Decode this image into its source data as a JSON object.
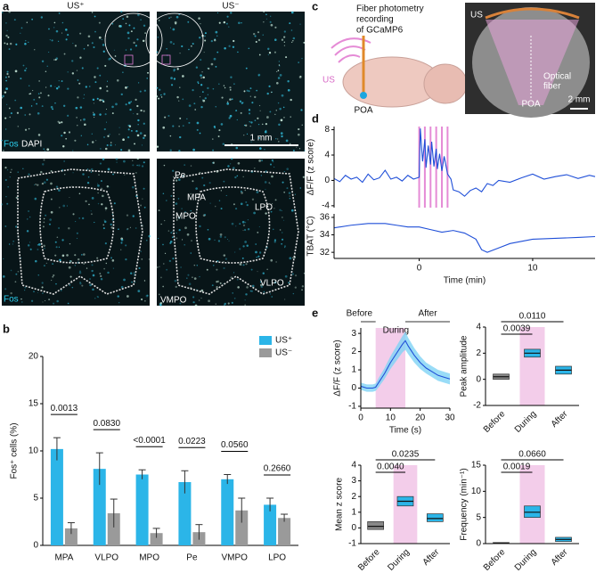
{
  "figure": {
    "a": {
      "label": "a",
      "top_labels": [
        "US⁺",
        "US⁻"
      ],
      "stain_top": [
        "Fos",
        "DAPI"
      ],
      "scale_bar": "1 mm",
      "regions": [
        "Pe",
        "MPA",
        "MPO",
        "LPO",
        "VLPO",
        "VMPO"
      ],
      "stain_bottom": "Fos"
    },
    "b": {
      "label": "b"
    },
    "c": {
      "label": "c",
      "title": [
        "Fiber photometry",
        "recording",
        "of GCaMP6"
      ],
      "cartoon_labels": [
        "US",
        "POA"
      ],
      "image_labels": [
        "US",
        "Optical",
        "fiber",
        "POA"
      ],
      "scale_bar": "2 mm"
    },
    "d": {
      "label": "d"
    },
    "e": {
      "label": "e"
    }
  },
  "chart_data": [
    {
      "type": "bar",
      "ylabel": "Fos⁺ cells (%)",
      "categories": [
        "MPA",
        "VLPO",
        "MPO",
        "Pe",
        "VMPO",
        "LPO"
      ],
      "series": [
        {
          "name": "US⁺",
          "color": "#2bb5e8",
          "values": [
            10.2,
            8.1,
            7.5,
            6.7,
            7.0,
            4.3
          ],
          "errors": [
            1.2,
            1.7,
            0.5,
            1.2,
            0.5,
            0.7
          ]
        },
        {
          "name": "US⁻",
          "color": "#9a9a9a",
          "values": [
            1.8,
            3.4,
            1.3,
            1.4,
            3.7,
            2.9
          ],
          "errors": [
            0.6,
            1.5,
            0.5,
            0.8,
            1.3,
            0.4
          ]
        }
      ],
      "annotations": [
        "0.0013",
        "0.0830",
        "<0.0001",
        "0.0223",
        "0.0560",
        "0.2660"
      ],
      "ylim": [
        0,
        20
      ],
      "yticks": [
        0,
        5,
        10,
        15,
        20
      ]
    },
    {
      "type": "line",
      "ylabel": "ΔF/F (z score)",
      "color": "#1f4fd8",
      "stim_color": "#e58bd6",
      "stim_x": [
        0,
        0.5,
        1,
        1.5,
        2,
        2.5
      ],
      "x": [
        -7.5,
        -7,
        -6.5,
        -6,
        -5.5,
        -5,
        -4.5,
        -4,
        -3.5,
        -3,
        -2.5,
        -2,
        -1.5,
        -1,
        -0.5,
        0,
        0.1,
        0.3,
        0.5,
        0.6,
        0.8,
        1,
        1.1,
        1.3,
        1.5,
        1.6,
        1.8,
        2,
        2.2,
        2.5,
        2.8,
        3,
        3.5,
        4,
        4.5,
        5,
        5.5,
        6,
        6.5,
        7,
        8,
        9,
        10,
        11,
        12,
        13,
        14,
        15,
        15.5
      ],
      "values": [
        0.3,
        -0.2,
        0.8,
        0.2,
        0.5,
        -0.3,
        1,
        0.1,
        0.4,
        1.6,
        0.2,
        0.5,
        -0.1,
        0.8,
        0.2,
        0.5,
        8.2,
        3,
        6.5,
        2,
        5.5,
        2.5,
        6.1,
        2.2,
        5,
        1.8,
        4.2,
        1.5,
        3.8,
        1,
        0.2,
        -1.5,
        -1.8,
        -2.5,
        -1.6,
        -1.2,
        -1.8,
        -0.5,
        -0.8,
        0,
        -0.3,
        0.4,
        1,
        0.2,
        0.6,
        0.9,
        0.3,
        0.8,
        0.6
      ],
      "xlim": [
        -7.5,
        15.5
      ],
      "ylim": [
        -4.3,
        8.5
      ],
      "yticks": [
        -4,
        0,
        4,
        8
      ]
    },
    {
      "type": "line",
      "ylabel": "TBAT (°C)",
      "xlabel": "Time (min)",
      "color": "#1f4fd8",
      "x": [
        -7.5,
        -6,
        -4.5,
        -3,
        -2,
        -1,
        0,
        1,
        2,
        3,
        4,
        5,
        5.5,
        6,
        7,
        8,
        10,
        12,
        14,
        15.5
      ],
      "values": [
        34.8,
        35.1,
        35.3,
        35.3,
        35.1,
        34.9,
        34.9,
        34.6,
        34.3,
        34.5,
        34.2,
        33.5,
        32.3,
        32,
        32.5,
        33,
        33.5,
        33.6,
        33.7,
        33.8
      ],
      "xlim": [
        -7.5,
        15.5
      ],
      "ylim": [
        31.3,
        36.4
      ],
      "yticks": [
        32,
        34,
        36
      ],
      "xticks": [
        0,
        10
      ]
    },
    {
      "type": "line",
      "ylabel": "ΔF/F (z score)",
      "xlabel": "Time (s)",
      "color": "#1f4fd8",
      "band_color": "#7fd3f5",
      "during_color": "#f3cdea",
      "phases": [
        "Before",
        "During",
        "After"
      ],
      "during_x": [
        5,
        15
      ],
      "x": [
        0,
        2,
        4,
        5,
        6,
        8,
        10,
        12,
        14,
        15,
        16,
        18,
        20,
        22,
        24,
        26,
        28,
        30
      ],
      "values": [
        0.1,
        0,
        0,
        0.05,
        0.3,
        0.8,
        1.4,
        1.9,
        2.4,
        2.6,
        2.3,
        1.8,
        1.4,
        1.1,
        0.9,
        0.7,
        0.6,
        0.5
      ],
      "errors": [
        0.2,
        0.2,
        0.2,
        0.2,
        0.25,
        0.3,
        0.35,
        0.4,
        0.45,
        0.5,
        0.45,
        0.4,
        0.35,
        0.3,
        0.3,
        0.3,
        0.3,
        0.3
      ],
      "xlim": [
        0,
        30
      ],
      "ylim": [
        -1.1,
        3.3
      ],
      "xticks": [
        0,
        10,
        20,
        30
      ],
      "yticks": [
        -1,
        0,
        1,
        2,
        3
      ]
    },
    {
      "type": "box",
      "ylabel": "Peak amplitude",
      "categories": [
        "Before",
        "During",
        "After"
      ],
      "colors": [
        "#888888",
        "#2bb5e8",
        "#2bb5e8"
      ],
      "boxes": [
        {
          "q1": 0,
          "median": 0.2,
          "q3": 0.4
        },
        {
          "q1": 1.7,
          "median": 2.0,
          "q3": 2.3
        },
        {
          "q1": 0.4,
          "median": 0.7,
          "q3": 1.0
        }
      ],
      "comparisons": [
        "0.0039",
        "0.0110"
      ],
      "ylim": [
        -2,
        4
      ],
      "yticks": [
        -2,
        0,
        2,
        4
      ]
    },
    {
      "type": "box",
      "ylabel": "Mean z score",
      "categories": [
        "Before",
        "During",
        "After"
      ],
      "colors": [
        "#888888",
        "#2bb5e8",
        "#2bb5e8"
      ],
      "boxes": [
        {
          "q1": -0.1,
          "median": 0.1,
          "q3": 0.4
        },
        {
          "q1": 1.4,
          "median": 1.7,
          "q3": 2.0
        },
        {
          "q1": 0.4,
          "median": 0.6,
          "q3": 0.9
        }
      ],
      "comparisons": [
        "0.0040",
        "0.0235"
      ],
      "ylim": [
        -1,
        4
      ],
      "yticks": [
        -1,
        0,
        1,
        2,
        3,
        4
      ]
    },
    {
      "type": "box",
      "ylabel": "Frequency (min⁻¹)",
      "categories": [
        "Before",
        "During",
        "After"
      ],
      "colors": [
        "#888888",
        "#2bb5e8",
        "#2bb5e8"
      ],
      "boxes": [
        {
          "q1": 0,
          "median": 0.1,
          "q3": 0.2
        },
        {
          "q1": 5,
          "median": 6,
          "q3": 7.2
        },
        {
          "q1": 0.4,
          "median": 0.8,
          "q3": 1.2
        }
      ],
      "comparisons": [
        "0.0019",
        "0.0660"
      ],
      "ylim": [
        0,
        15
      ],
      "yticks": [
        0,
        5,
        10,
        15
      ]
    }
  ]
}
